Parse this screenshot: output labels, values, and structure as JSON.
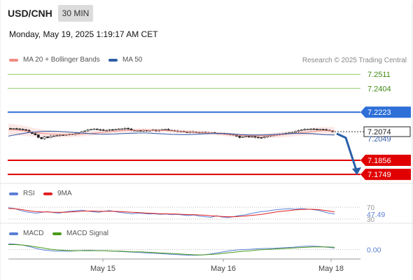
{
  "header": {
    "symbol": "USD/CNH",
    "timeframe": "30 MIN",
    "datetime": "Monday, May 19, 2025 1:19:17 AM CET",
    "credit": "Research © 2025 Trading Central"
  },
  "legend": {
    "main": [
      {
        "label": "MA 20 + Bollinger Bands",
        "color": "#f28b82"
      },
      {
        "label": "MA 50",
        "color": "#2e5fa3"
      }
    ],
    "rsi": [
      {
        "label": "RSI",
        "color": "#5b7fd6"
      },
      {
        "label": "9MA",
        "color": "#e02020"
      }
    ],
    "macd": [
      {
        "label": "MACD",
        "color": "#5b7fd6"
      },
      {
        "label": "MACD Signal",
        "color": "#4a9a1a"
      }
    ]
  },
  "chart_data": [
    {
      "type": "candlestick",
      "title": "USD/CNH 30 MIN",
      "x_ticks": [
        "May 15",
        "May 16",
        "May 18"
      ],
      "ylim": [
        7.168,
        7.256
      ],
      "levels": [
        {
          "value": 7.2511,
          "label": "7.2511",
          "kind": "resistance",
          "color": "#8fca6a"
        },
        {
          "value": 7.2404,
          "label": "7.2404",
          "kind": "resistance",
          "color": "#8fca6a"
        },
        {
          "value": 7.2223,
          "label": "7.2223",
          "kind": "pivot",
          "color": "#2e6fd8"
        },
        {
          "value": 7.1856,
          "label": "7.1856",
          "kind": "support",
          "color": "#e00000"
        },
        {
          "value": 7.1749,
          "label": "7.1749",
          "kind": "support",
          "color": "#e00000"
        }
      ],
      "last_price": {
        "label": "7.2074",
        "value": 7.2074
      },
      "ma50_last": {
        "label": "7.2049",
        "value": 7.2049
      },
      "close": [
        7.2095,
        7.2098,
        7.2096,
        7.2093,
        7.209,
        7.2085,
        7.207,
        7.206,
        7.205,
        7.203,
        7.202,
        7.2035,
        7.2028,
        7.204,
        7.2042,
        7.2045,
        7.205,
        7.2048,
        7.2052,
        7.2055,
        7.2053,
        7.206,
        7.2065,
        7.2075,
        7.208,
        7.2088,
        7.2092,
        7.2095,
        7.209,
        7.2088,
        7.2084,
        7.2085,
        7.209,
        7.2088,
        7.2092,
        7.2095,
        7.2096,
        7.21,
        7.2095,
        7.2085,
        7.208,
        7.2083,
        7.2078,
        7.2085,
        7.208,
        7.2084,
        7.2088,
        7.208,
        7.2086,
        7.209,
        7.2092,
        7.2085,
        7.2082,
        7.208,
        7.2076,
        7.2078,
        7.2072,
        7.207,
        7.2074,
        7.2072,
        7.207,
        7.2068,
        7.207,
        7.2066,
        7.2064,
        7.2066,
        7.2062,
        7.206,
        7.2062,
        7.2058,
        7.2055,
        7.2052,
        7.205,
        7.204,
        7.203,
        7.2036,
        7.204,
        7.2034,
        7.2038,
        7.2032,
        7.203,
        7.2028,
        7.2035,
        7.2042,
        7.2045,
        7.2048,
        7.2052,
        7.2055,
        7.2058,
        7.2062,
        7.2066,
        7.2068,
        7.2075,
        7.2082,
        7.2088,
        7.2092,
        7.2094,
        7.2095,
        7.2093,
        7.209,
        7.2092,
        7.209,
        7.2086,
        7.2082,
        7.2074
      ],
      "ma20": [
        7.209,
        7.2088,
        7.2085,
        7.208,
        7.2074,
        7.2068,
        7.2063,
        7.2059,
        7.2056,
        7.2054,
        7.2052,
        7.2052,
        7.2053,
        7.2054,
        7.2056,
        7.2059,
        7.2062,
        7.2066,
        7.207,
        7.2074,
        7.2077,
        7.208,
        7.2082,
        7.2084,
        7.2085,
        7.2086,
        7.2086,
        7.2085,
        7.2084,
        7.2083,
        7.2082,
        7.208,
        7.2078,
        7.2076,
        7.2074,
        7.2072,
        7.207,
        7.2068,
        7.2065,
        7.2062,
        7.2058,
        7.2055,
        7.2051,
        7.2048,
        7.2046,
        7.2044,
        7.2043,
        7.2042,
        7.2042,
        7.2043,
        7.2045,
        7.2048,
        7.2052,
        7.2056,
        7.206,
        7.2064,
        7.2068,
        7.2072,
        7.2076,
        7.208,
        7.2081,
        7.2081,
        7.208
      ],
      "bb_upper_range": [
        7.2115,
        7.2065
      ],
      "ma50": [
        7.204,
        7.2048,
        7.2055,
        7.2062,
        7.2068,
        7.2072,
        7.2075,
        7.2077,
        7.2078,
        7.2077,
        7.2075,
        7.2073,
        7.207,
        7.2067,
        7.2064,
        7.2061,
        7.2058,
        7.2056,
        7.2055,
        7.2055,
        7.2056,
        7.2058,
        7.206,
        7.2062,
        7.2063,
        7.2064,
        7.2064,
        7.2063,
        7.206,
        7.2058,
        7.2056,
        7.2054,
        7.2053,
        7.2052,
        7.2052,
        7.2053,
        7.2055,
        7.2057,
        7.2059,
        7.206,
        7.2061,
        7.206,
        7.2058,
        7.2055,
        7.2052,
        7.205,
        7.2049,
        7.2049,
        7.2049,
        7.205,
        7.2052,
        7.2054,
        7.2056,
        7.2058,
        7.206,
        7.2061,
        7.2061,
        7.206,
        7.2058,
        7.2054,
        7.2051,
        7.205,
        7.2049
      ],
      "projection": {
        "from": 7.207,
        "to": 7.1749
      }
    },
    {
      "type": "line",
      "title": "RSI",
      "ylim": [
        30,
        70
      ],
      "ticks": [
        "70",
        "30"
      ],
      "last_label": "47.49",
      "series": [
        {
          "name": "RSI",
          "values": [
            68,
            66,
            60,
            55,
            52,
            50,
            53,
            55,
            52,
            50,
            54,
            56,
            58,
            60,
            57,
            55,
            53,
            56,
            59,
            55,
            52,
            50,
            48,
            50,
            49,
            47,
            48,
            46,
            47,
            45,
            46,
            44,
            42,
            44,
            40,
            38,
            36,
            41,
            37,
            35,
            38,
            42,
            44,
            48,
            52,
            55,
            57,
            60,
            62,
            64,
            65,
            63,
            66,
            64,
            62,
            60,
            55,
            50,
            47
          ]
        },
        {
          "name": "9MA",
          "values": [
            66,
            65,
            63,
            60,
            57,
            55,
            54,
            54,
            53,
            53,
            53,
            54,
            55,
            56,
            57,
            57,
            56,
            56,
            56,
            56,
            55,
            54,
            53,
            52,
            51,
            50,
            49,
            48,
            48,
            47,
            47,
            46,
            45,
            45,
            44,
            43,
            41,
            40,
            39,
            38,
            38,
            39,
            40,
            42,
            44,
            46,
            49,
            52,
            55,
            57,
            59,
            61,
            62,
            63,
            63,
            62,
            60,
            57,
            54
          ]
        }
      ]
    },
    {
      "type": "line",
      "title": "MACD",
      "ylim": [
        -0.0025,
        0.0025
      ],
      "ticks": [
        "0.00"
      ],
      "series": [
        {
          "name": "MACD",
          "values": [
            0.0015,
            0.0014,
            0.0012,
            0.0008,
            0.0003,
            -0.0001,
            -0.0003,
            -0.0004,
            -0.0004,
            -0.0004,
            -0.0003,
            -0.0002,
            -0.0002,
            -0.0003,
            -0.0003,
            -0.0004,
            -0.0005,
            -0.0006,
            -0.0007,
            -0.0008,
            -0.0009,
            -0.001,
            -0.0011,
            -0.0012,
            -0.0013,
            -0.0014,
            -0.0015,
            -0.0015,
            -0.0014,
            -0.0012,
            -0.0009,
            -0.0006,
            -0.0003,
            -0.0001,
            0.0,
            0.0001,
            0.0002,
            0.0003,
            0.0003,
            0.0004,
            0.0005,
            0.0006,
            0.0008,
            0.0009,
            0.0009,
            0.0008,
            0.0006,
            0.0004
          ]
        },
        {
          "name": "MACD Signal",
          "values": [
            0.0013,
            0.0013,
            0.0012,
            0.001,
            0.0007,
            0.0004,
            0.0001,
            -0.0001,
            -0.0002,
            -0.0003,
            -0.0003,
            -0.0003,
            -0.0003,
            -0.0003,
            -0.0003,
            -0.0004,
            -0.0004,
            -0.0005,
            -0.0006,
            -0.0006,
            -0.0007,
            -0.0008,
            -0.0009,
            -0.001,
            -0.0011,
            -0.0012,
            -0.0013,
            -0.0014,
            -0.0014,
            -0.0013,
            -0.0012,
            -0.001,
            -0.0008,
            -0.0006,
            -0.0004,
            -0.0003,
            -0.0001,
            0.0,
            0.0001,
            0.0002,
            0.0003,
            0.0004,
            0.0005,
            0.0006,
            0.0007,
            0.0007,
            0.0007,
            0.0006
          ]
        }
      ]
    }
  ]
}
